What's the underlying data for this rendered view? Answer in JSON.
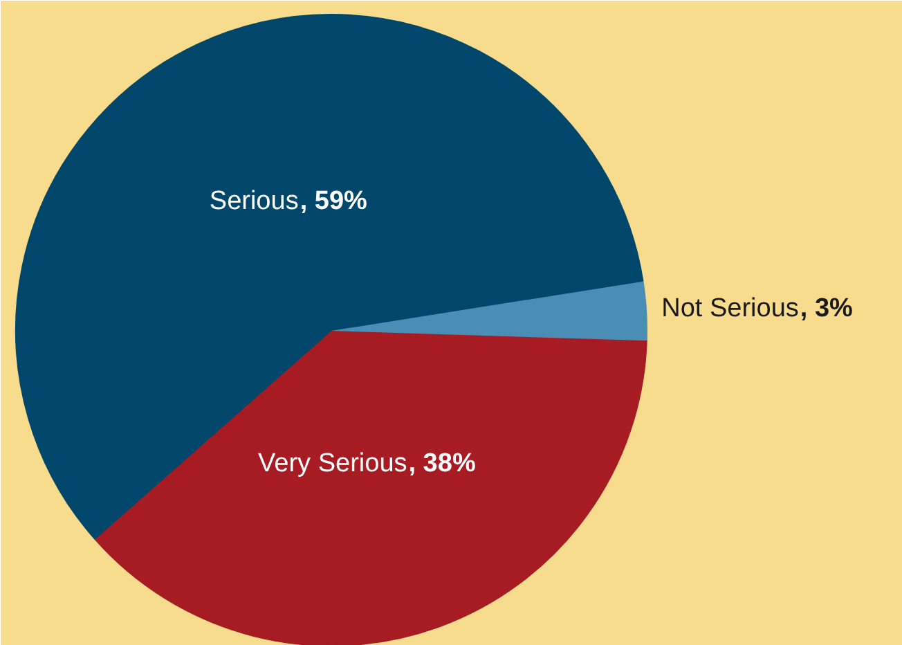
{
  "chart_data": {
    "type": "pie",
    "categories": [
      "Very Serious",
      "Not Serious",
      "Serious"
    ],
    "values": [
      38,
      3,
      59
    ],
    "value_labels": [
      ", 38%",
      ", 3%",
      ", 59%"
    ],
    "colors": [
      "#a61c22",
      "#4a8db5",
      "#00476b"
    ]
  }
}
